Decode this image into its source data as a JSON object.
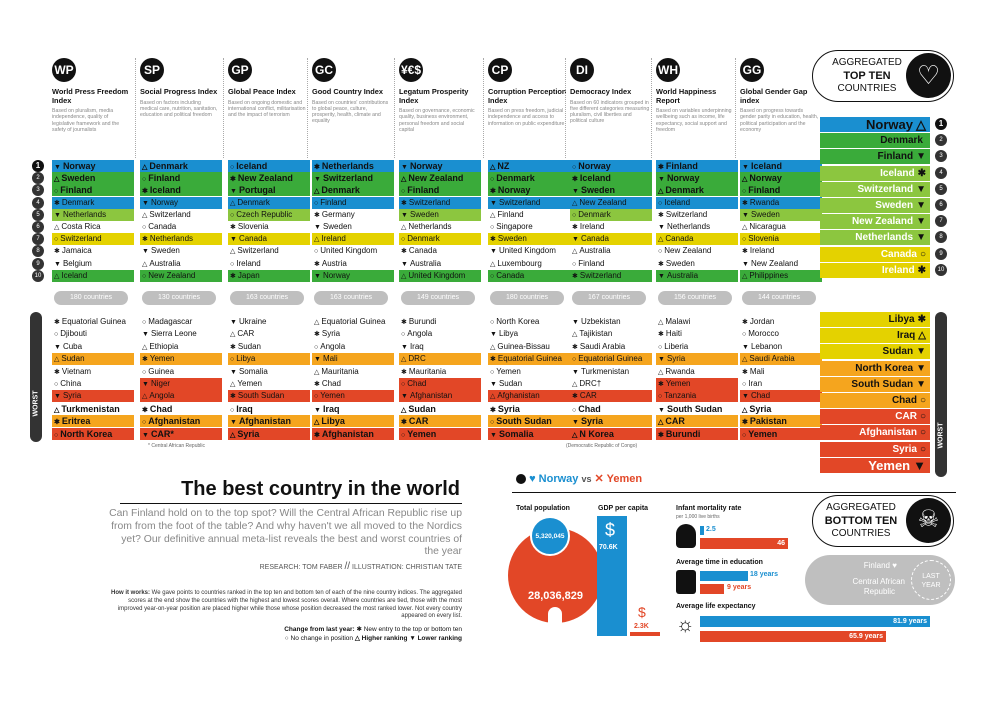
{
  "header": {
    "agg_top_line1": "AGGREGATED",
    "agg_top_line2": "TOP TEN",
    "agg_top_line3": "COUNTRIES",
    "agg_bottom_line1": "AGGREGATED",
    "agg_bottom_line2": "BOTTOM TEN",
    "agg_bottom_line3": "COUNTRIES",
    "worst_label": "WORST"
  },
  "indices": [
    {
      "title": "World Press Freedom Index",
      "icon": "WP",
      "desc": "Based on pluralism, media independence, quality of legislative framework and the safety of journalists",
      "countries": "180 countries",
      "top": [
        "Norway",
        "Sweden",
        "Finland",
        "Denmark",
        "Netherlands",
        "Costa Rica",
        "Switzerland",
        "Jamaica",
        "Belgium",
        "Iceland"
      ],
      "bottom": [
        "Equatorial Guinea",
        "Djibouti",
        "Cuba",
        "Sudan",
        "Vietnam",
        "China",
        "Syria",
        "Turkmenistan",
        "Eritrea",
        "North Korea"
      ]
    },
    {
      "title": "Social Progress Index",
      "icon": "SP",
      "desc": "Based on factors including medical care, nutrition, sanitation, education and political freedom",
      "countries": "130 countries",
      "top": [
        "Denmark",
        "Finland",
        "Iceland",
        "Norway",
        "Switzerland",
        "Canada",
        "Netherlands",
        "Sweden",
        "Australia",
        "New Zealand"
      ],
      "bottom": [
        "Madagascar",
        "Sierra Leone",
        "Ethiopia",
        "Yemen",
        "Guinea",
        "Niger",
        "Angola",
        "Chad",
        "Afghanistan",
        "CAR*"
      ]
    },
    {
      "title": "Global Peace Index",
      "icon": "GP",
      "desc": "Based on ongoing domestic and international conflict, militarisation and the impact of terrorism",
      "countries": "163 countries",
      "top": [
        "Iceland",
        "New Zealand",
        "Portugal",
        "Denmark",
        "Czech Republic",
        "Slovenia",
        "Canada",
        "Switzerland",
        "Ireland",
        "Japan"
      ],
      "bottom": [
        "Ukraine",
        "CAR",
        "Sudan",
        "Libya",
        "Somalia",
        "Yemen",
        "South Sudan",
        "Iraq",
        "Afghanistan",
        "Syria"
      ]
    },
    {
      "title": "Good Country Index",
      "icon": "GC",
      "desc": "Based on countries' contributions to global peace, culture, prosperity, health, climate and equality",
      "countries": "163 countries",
      "top": [
        "Netherlands",
        "Switzerland",
        "Denmark",
        "Finland",
        "Germany",
        "Sweden",
        "Ireland",
        "United Kingdom",
        "Austria",
        "Norway"
      ],
      "bottom": [
        "Equatorial Guinea",
        "Syria",
        "Angola",
        "Mali",
        "Mauritania",
        "Chad",
        "Yemen",
        "Iraq",
        "Libya",
        "Afghanistan"
      ]
    },
    {
      "title": "Legatum Prosperity Index",
      "icon": "¥€$",
      "desc": "Based on governance, economic quality, business environment, personal freedom and social capital",
      "countries": "149 countries",
      "top": [
        "Norway",
        "New Zealand",
        "Finland",
        "Switzerland",
        "Sweden",
        "Netherlands",
        "Denmark",
        "Canada",
        "Australia",
        "United Kingdom"
      ],
      "bottom": [
        "Burundi",
        "Angola",
        "Iraq",
        "DRC",
        "Mauritania",
        "Chad",
        "Afghanistan",
        "Sudan",
        "CAR",
        "Yemen"
      ]
    },
    {
      "title": "Corruption Perception Index",
      "icon": "CP",
      "desc": "Based on press freedom, judicial independence and access to information on public expenditure",
      "countries": "180 countries",
      "top": [
        "NZ",
        "Denmark",
        "Norway",
        "Switzerland",
        "Finland",
        "Singapore",
        "Sweden",
        "United Kingdom",
        "Luxembourg",
        "Canada"
      ],
      "bottom": [
        "North Korea",
        "Libya",
        "Guinea-Bissau",
        "Equatorial Guinea",
        "Yemen",
        "Sudan",
        "Afghanistan",
        "Syria",
        "South Sudan",
        "Somalia"
      ]
    },
    {
      "title": "Democracy Index",
      "icon": "DI",
      "desc": "Based on 60 indicators grouped in five different categories measuring pluralism, civil liberties and political culture",
      "countries": "167 countries",
      "top": [
        "Norway",
        "Iceland",
        "Sweden",
        "New Zealand",
        "Denmark",
        "Ireland",
        "Canada",
        "Australia",
        "Finland",
        "Switzerland"
      ],
      "bottom": [
        "Uzbekistan",
        "Tajikistan",
        "Saudi Arabia",
        "Equatorial Guinea",
        "Turkmenistan",
        "DRC†",
        "CAR",
        "Chad",
        "Syria",
        "N Korea"
      ]
    },
    {
      "title": "World Happiness Report",
      "icon": "WH",
      "desc": "Based on variables underpinning wellbeing such as income, life expectancy, social support and freedom",
      "countries": "156 countries",
      "top": [
        "Finland",
        "Norway",
        "Denmark",
        "Iceland",
        "Switzerland",
        "Netherlands",
        "Canada",
        "New Zealand",
        "Sweden",
        "Australia"
      ],
      "bottom": [
        "Malawi",
        "Haiti",
        "Liberia",
        "Syria",
        "Rwanda",
        "Yemen",
        "Tanzania",
        "South Sudan",
        "CAR",
        "Burundi"
      ]
    },
    {
      "title": "Global Gender Gap index",
      "icon": "GG",
      "desc": "Based on progress towards gender parity in education, health, political participation and the economy",
      "countries": "144 countries",
      "top": [
        "Iceland",
        "Norway",
        "Finland",
        "Rwanda",
        "Sweden",
        "Nicaragua",
        "Slovenia",
        "Ireland",
        "New Zealand",
        "Philippines"
      ],
      "bottom": [
        "Jordan",
        "Morocco",
        "Lebanon",
        "Saudi Arabia",
        "Mali",
        "Iran",
        "Chad",
        "Syria",
        "Pakistan",
        "Yemen"
      ]
    }
  ],
  "footnotes": {
    "car": "* Central African Republic",
    "drc": "(Democratic Republic of Congo)"
  },
  "rank_numbers": [
    "1",
    "2",
    "3",
    "4",
    "5",
    "6",
    "7",
    "8",
    "9",
    "10"
  ],
  "aggregated_top": [
    "Norway",
    "Denmark",
    "Finland",
    "Iceland",
    "Switzerland",
    "Sweden",
    "New Zealand",
    "Netherlands",
    "Canada",
    "Ireland"
  ],
  "aggregated_top_marks": [
    "△",
    "",
    "▼",
    "✱",
    "▼",
    "▼",
    "▼",
    "▼",
    "○",
    "✱"
  ],
  "aggregated_bottom": [
    "Libya",
    "Iraq",
    "Sudan",
    "North Korea",
    "South Sudan",
    "Chad",
    "CAR",
    "Afghanistan",
    "Syria",
    "Yemen"
  ],
  "aggregated_bottom_marks": [
    "✱",
    "△",
    "▼",
    "▼",
    "▼",
    "○",
    "○",
    "○",
    "○",
    "▼"
  ],
  "article": {
    "title": "The best country in the world",
    "standfirst": "Can Finland hold on to the top spot? Will the Central African Republic rise up from from the foot of the table? And why haven't we all moved to the Nordics yet? Our definitive annual meta-list reveals the best and worst countries of the year",
    "credit_research": "RESEARCH: TOM FABER",
    "credit_sep": "//",
    "credit_illustration": "ILLUSTRATION: CHRISTIAN TATE",
    "how_it_works_label": "How it works:",
    "how_it_works": "We gave points to countries ranked in the top ten and bottom ten of each of the nine country indices. The aggregated scores at the end show the countries with the highest and lowest scores overall. Where countries are tied, those with the most improved year-on-year position are placed higher while those whose position decreased the most ranked lower. Not every country appeared on every list.",
    "legend_title": "Change from last year:",
    "legend_1": "✱ New entry to the top or bottom ten",
    "legend_2": "○ No change in position",
    "legend_3": "△ Higher ranking",
    "legend_4": "▼ Lower ranking"
  },
  "comparison": {
    "heading_a": "Norway",
    "heading_vs": "vs",
    "heading_b": "Yemen",
    "population_label": "Total population",
    "population_norway": "5,320,045",
    "population_yemen": "28,036,829",
    "gdp_label": "GDP per capita",
    "gdp_norway": "70.6K",
    "gdp_yemen": "2.3K",
    "gdp_symbol": "$",
    "infant_label": "Infant mortality rate",
    "infant_sub": "per 1,000 live births",
    "infant_norway": "2.5",
    "infant_yemen": "46",
    "education_label": "Average time in education",
    "education_norway": "18 years",
    "education_yemen": "9 years",
    "life_label": "Average life expectancy",
    "life_norway": "81.9 years",
    "life_yemen": "65.9 years"
  },
  "last_year": {
    "top": "Finland",
    "bottom_line1": "Central African",
    "bottom_line2": "Republic",
    "badge_line1": "LAST",
    "badge_line2": "YEAR"
  },
  "colors": {
    "blue": "#1a8fd0",
    "green": "#3aab3a",
    "lightgreen": "#8cc63f",
    "yellow": "#e4d200",
    "orange": "#f5a51e",
    "red": "#e24727",
    "dark": "#111111"
  }
}
